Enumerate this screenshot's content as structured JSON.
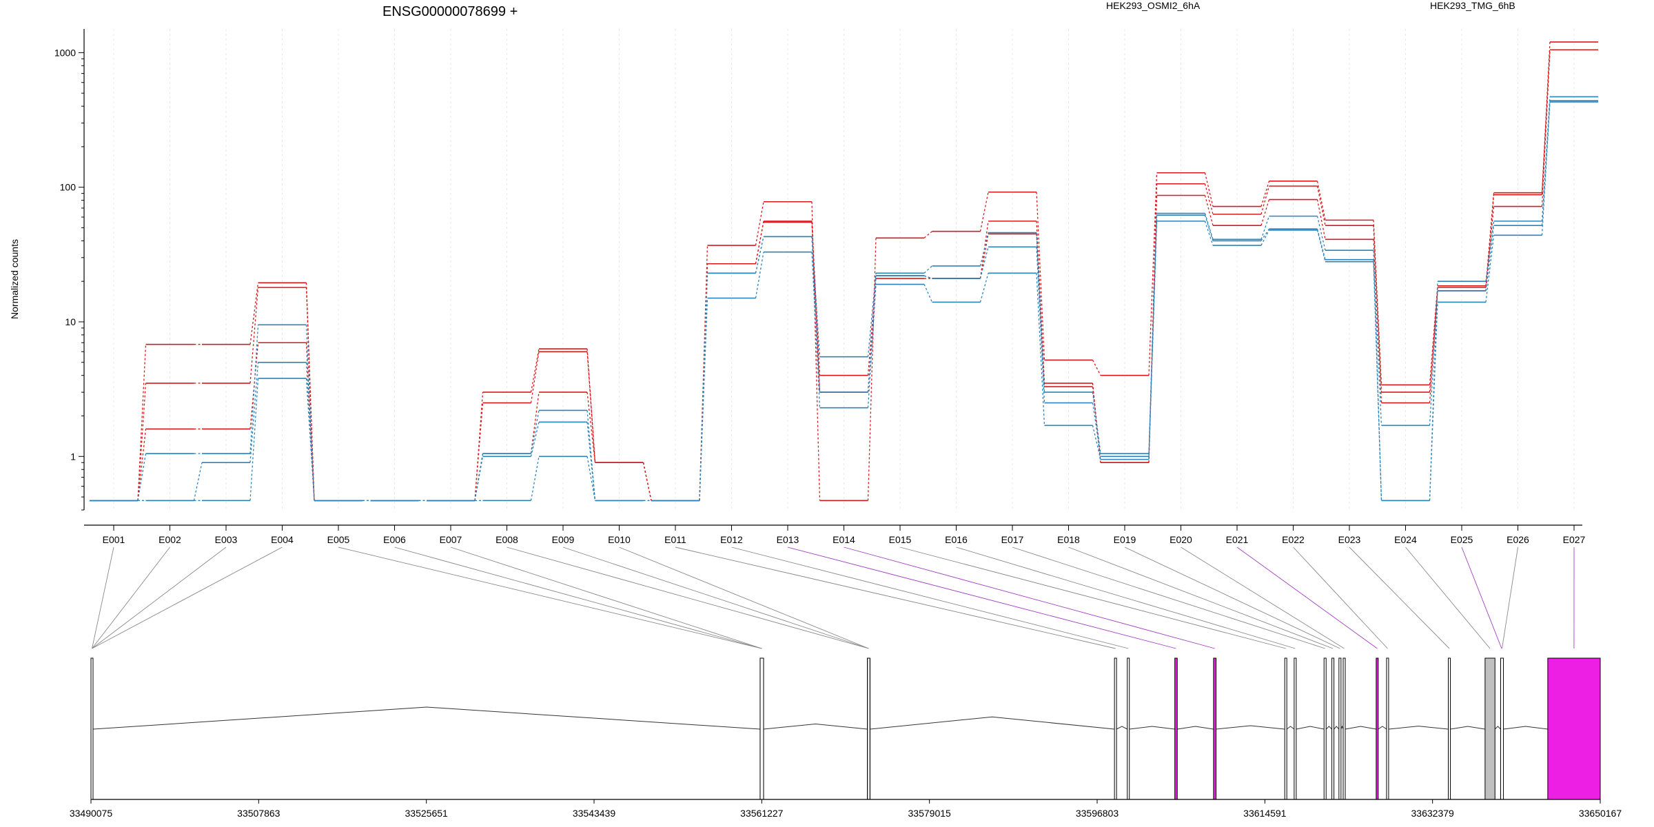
{
  "chart_data": {
    "type": "line",
    "title": "ENSG00000078699 +",
    "ylabel": "Normalized counts",
    "yscale": "log",
    "ylim": [
      0.4,
      1500
    ],
    "yticks": [
      1,
      10,
      100,
      1000
    ],
    "yticklabels": [
      "1",
      "10",
      "100",
      "1000"
    ],
    "grid": "vertical dashed lines at exon bins",
    "legend_placement": "top",
    "legend": [
      {
        "label": "HEK293_OSMI2_6hA",
        "color": "#d7191c"
      },
      {
        "label": "HEK293_TMG_6hB",
        "color": "#2b83ba"
      }
    ],
    "categories": [
      "E001",
      "E002",
      "E003",
      "E004",
      "E005",
      "E006",
      "E007",
      "E008",
      "E009",
      "E010",
      "E011",
      "E012",
      "E013",
      "E014",
      "E015",
      "E016",
      "E017",
      "E018",
      "E019",
      "E020",
      "E021",
      "E022",
      "E023",
      "E024",
      "E025",
      "E026",
      "E027"
    ],
    "series": [
      {
        "group": "HEK293_OSMI2_6hA",
        "color": "#d7191c",
        "values": [
          0.47,
          6.8,
          6.8,
          19.5,
          0.47,
          0.47,
          0.47,
          3.0,
          6.3,
          0.9,
          0.47,
          37,
          78,
          0.47,
          42,
          47,
          92,
          5.2,
          4.0,
          128,
          72,
          111,
          57,
          3.4,
          18.5,
          91,
          1200
        ]
      },
      {
        "group": "HEK293_OSMI2_6hA",
        "color": "#d7191c",
        "values": [
          0.47,
          3.5,
          3.5,
          18,
          0.47,
          0.47,
          0.47,
          2.5,
          6.0,
          0.9,
          0.47,
          27,
          56,
          4.0,
          22,
          21,
          56,
          3.5,
          0.9,
          106,
          63,
          102,
          52,
          3.0,
          18,
          72,
          1050
        ]
      },
      {
        "group": "HEK293_OSMI2_6hA",
        "color": "#d7191c",
        "values": [
          0.47,
          1.6,
          1.6,
          7.0,
          0.47,
          0.47,
          0.47,
          1.05,
          3.0,
          0.9,
          0.47,
          27,
          55,
          3.0,
          21,
          21,
          45,
          3.3,
          0.9,
          87,
          52,
          81,
          41,
          2.5,
          17,
          88,
          1050
        ]
      },
      {
        "group": "HEK293_TMG_6hB",
        "color": "#2b83ba",
        "values": [
          0.47,
          1.05,
          1.05,
          9.5,
          0.47,
          0.47,
          0.47,
          1.05,
          2.2,
          0.47,
          0.47,
          23,
          43,
          5.5,
          23,
          26,
          46,
          3.0,
          1.05,
          64,
          41,
          61,
          34,
          0.47,
          20,
          56,
          470
        ]
      },
      {
        "group": "HEK293_TMG_6hB",
        "color": "#2b83ba",
        "values": [
          0.47,
          0.47,
          0.9,
          5.0,
          0.47,
          0.47,
          0.47,
          1.0,
          1.8,
          0.47,
          0.47,
          23,
          43,
          3.0,
          22,
          21,
          36,
          2.5,
          1.0,
          62,
          40,
          49,
          29,
          1.7,
          17,
          52,
          440
        ]
      },
      {
        "group": "HEK293_TMG_6hB",
        "color": "#2b83ba",
        "values": [
          0.47,
          0.47,
          0.47,
          3.8,
          0.47,
          0.47,
          0.47,
          0.47,
          1.0,
          0.47,
          0.47,
          15,
          33,
          2.3,
          19,
          14,
          23,
          1.7,
          0.95,
          56,
          37,
          48,
          28,
          0.47,
          14,
          44,
          430
        ]
      }
    ],
    "gene_model": {
      "genomic_ticks": [
        "33490075",
        "33507863",
        "33525651",
        "33543439",
        "33561227",
        "33579015",
        "33596803",
        "33614591",
        "33632379",
        "33650167"
      ],
      "coord_range": [
        33490075,
        33650167
      ],
      "exon_color": "#ffffff",
      "significant_exon_color": "#ee1fe4",
      "highlighted_exon_color": "#c0c0c0",
      "connector_color_default": "#888888",
      "connector_color_significant": "#a040c0",
      "exons": [
        {
          "id": "E001",
          "start": 33490075,
          "end": 33490260,
          "status": "normal"
        },
        {
          "id": "E002",
          "start": 33490075,
          "end": 33490260,
          "status": "normal"
        },
        {
          "id": "E003",
          "start": 33490075,
          "end": 33490260,
          "status": "normal"
        },
        {
          "id": "E004",
          "start": 33490075,
          "end": 33490260,
          "status": "normal"
        },
        {
          "id": "E005",
          "start": 33561055,
          "end": 33561420,
          "status": "normal"
        },
        {
          "id": "E006",
          "start": 33561055,
          "end": 33561420,
          "status": "normal"
        },
        {
          "id": "E007",
          "start": 33561055,
          "end": 33561420,
          "status": "normal"
        },
        {
          "id": "E008",
          "start": 33572440,
          "end": 33572700,
          "status": "normal"
        },
        {
          "id": "E009",
          "start": 33572440,
          "end": 33572700,
          "status": "normal"
        },
        {
          "id": "E010",
          "start": 33572440,
          "end": 33572700,
          "status": "normal"
        },
        {
          "id": "E011",
          "start": 33598640,
          "end": 33598820,
          "status": "normal"
        },
        {
          "id": "E012",
          "start": 33600000,
          "end": 33600150,
          "status": "normal"
        },
        {
          "id": "E013",
          "start": 33605040,
          "end": 33605300,
          "status": "significant"
        },
        {
          "id": "E014",
          "start": 33609150,
          "end": 33609420,
          "status": "significant"
        },
        {
          "id": "E015",
          "start": 33616700,
          "end": 33616880,
          "status": "normal"
        },
        {
          "id": "E016",
          "start": 33617700,
          "end": 33617880,
          "status": "normal"
        },
        {
          "id": "E017",
          "start": 33620870,
          "end": 33621050,
          "status": "normal"
        },
        {
          "id": "E018",
          "start": 33621700,
          "end": 33621880,
          "status": "normal"
        },
        {
          "id": "E019",
          "start": 33622450,
          "end": 33622620,
          "status": "normal"
        },
        {
          "id": "E020",
          "start": 33622900,
          "end": 33623080,
          "status": "normal"
        },
        {
          "id": "E021",
          "start": 33626400,
          "end": 33626580,
          "status": "significant"
        },
        {
          "id": "E022",
          "start": 33627500,
          "end": 33627680,
          "status": "normal"
        },
        {
          "id": "E023",
          "start": 33634050,
          "end": 33634230,
          "status": "normal"
        },
        {
          "id": "E024",
          "start": 33637950,
          "end": 33639000,
          "status": "highlighted"
        },
        {
          "id": "E025",
          "start": 33639600,
          "end": 33639750,
          "status": "significant"
        },
        {
          "id": "E026",
          "start": 33639600,
          "end": 33639900,
          "status": "normal"
        },
        {
          "id": "E027",
          "start": 33644600,
          "end": 33650167,
          "status": "significant"
        }
      ]
    }
  }
}
